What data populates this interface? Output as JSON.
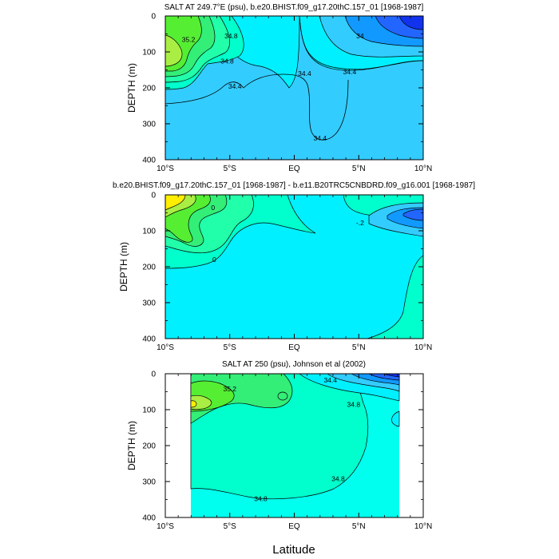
{
  "chart_data": [
    {
      "type": "contour",
      "title": "SALT AT 249.7°E (psu), b.e20.BHIST.f09_g17.20thC.157_01 [1968-1987]",
      "ylabel": "DEPTH (m)",
      "xlabel": "",
      "x_ticks": [
        "10°S",
        "5°S",
        "EQ",
        "5°N",
        "10°N"
      ],
      "y_ticks": [
        "0",
        "100",
        "200",
        "300",
        "400"
      ],
      "xlim": [
        -10,
        10
      ],
      "ylim": [
        400,
        0
      ],
      "contour_labels": [
        {
          "text": "35.2",
          "lat": -8.2,
          "depth": 65
        },
        {
          "text": "34.8",
          "lat": -5.2,
          "depth": 125
        },
        {
          "text": "34.8",
          "lat": -4.9,
          "depth": 55
        },
        {
          "text": "34.4",
          "lat": -4.6,
          "depth": 195
        },
        {
          "text": "34.4",
          "lat": 0.8,
          "depth": 160
        },
        {
          "text": "34.4",
          "lat": 4.3,
          "depth": 155
        },
        {
          "text": "34.4",
          "lat": 2.0,
          "depth": 340
        },
        {
          "text": "34",
          "lat": 5.1,
          "depth": 55
        }
      ]
    },
    {
      "type": "contour",
      "title": "b.e20.BHIST.f09_g17.20thC.157_01 [1968-1987] - b.e11.B20TRC5CNBDRD.f09_g16.001 [1968-1987]",
      "ylabel": "DEPTH (m)",
      "xlabel": "",
      "x_ticks": [
        "10°S",
        "5°S",
        "EQ",
        "5°N",
        "10°N"
      ],
      "y_ticks": [
        "0",
        "100",
        "200",
        "300",
        "400"
      ],
      "xlim": [
        -10,
        10
      ],
      "ylim": [
        400,
        0
      ],
      "contour_labels": [
        {
          "text": "0",
          "lat": -6.3,
          "depth": 35
        },
        {
          "text": "0",
          "lat": -6.2,
          "depth": 180
        },
        {
          "text": "-.2",
          "lat": 5.1,
          "depth": 78
        }
      ]
    },
    {
      "type": "contour",
      "title": "SALT AT 250 (psu), Johnson et al (2002)",
      "ylabel": "DEPTH (m)",
      "xlabel": "Latitude",
      "x_ticks": [
        "10°S",
        "5°S",
        "EQ",
        "5°N",
        "10°N"
      ],
      "y_ticks": [
        "0",
        "100",
        "200",
        "300",
        "400"
      ],
      "xlim": [
        -10,
        10
      ],
      "ylim": [
        400,
        0
      ],
      "data_xlim": [
        -8,
        8.2
      ],
      "contour_labels": [
        {
          "text": "35.2",
          "lat": -5.0,
          "depth": 42
        },
        {
          "text": "34.4",
          "lat": 2.8,
          "depth": 18
        },
        {
          "text": "34.8",
          "lat": 4.6,
          "depth": 85
        },
        {
          "text": "34.8",
          "lat": 3.4,
          "depth": 292
        },
        {
          "text": "34.8",
          "lat": -2.6,
          "depth": 348
        }
      ]
    }
  ],
  "colors": {
    "background_fill": "#00FFEE",
    "level_cyan": "#00F0FF",
    "level_lightblue": "#33CCFF",
    "level_blue1": "#1199FF",
    "level_blue2": "#2266FF",
    "level_blue3": "#1133EE",
    "level_aquagreen": "#22FFAA",
    "level_teal": "#00FFCC",
    "level_green1": "#33EE77",
    "level_green2": "#55EE33",
    "level_yellowgreen": "#AAEE44",
    "level_yellow": "#FFEE00",
    "frame": "#000000"
  }
}
